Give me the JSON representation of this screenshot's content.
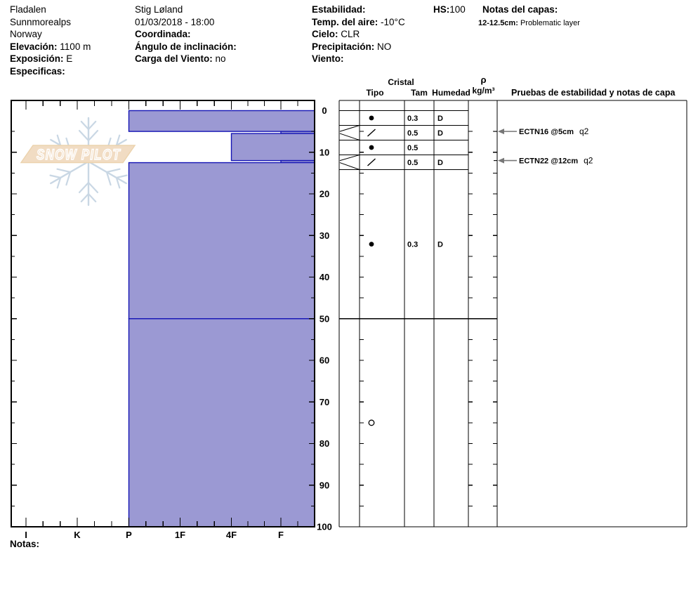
{
  "colors": {
    "layer_fill": "#9b99d3",
    "layer_stroke": "#1515b5",
    "axis": "#000000",
    "snowflake": "#c9d7e4",
    "logo_band_fill": "#f1dcc3",
    "logo_band_stroke": "#ecd3ae",
    "logo_text": "#ffffff",
    "arrow": "#777777"
  },
  "logo": {
    "text": "SNOW PILOT"
  },
  "header": {
    "site": {
      "name": "Fladalen",
      "range": "Sunnmorealps",
      "country": "Norway",
      "elevation_label": "Elevación:",
      "elevation_value": "1100 m",
      "aspect_label": "Exposición:",
      "aspect_value": "E",
      "specifics_label": "Especificas:",
      "specifics_value": ""
    },
    "observer": {
      "name": "Stig Løland",
      "datetime": "01/03/2018 - 18:00",
      "coord_label": "Coordinada:",
      "coord_value": "",
      "slope_angle_label": "Ángulo de inclinación:",
      "slope_angle_value": "",
      "wind_loading_label": "Carga del Viento:",
      "wind_loading_value": "no"
    },
    "conditions": {
      "stability_label": "Estabilidad:",
      "stability_value": "",
      "air_temp_label": "Temp. del aire:",
      "air_temp_value": "-10°C",
      "sky_label": "Cielo:",
      "sky_value": "CLR",
      "precip_label": "Precipitación:",
      "precip_value": "NO",
      "wind_label": "Viento:",
      "wind_value": ""
    },
    "hs_label": "HS:",
    "hs_value": "100",
    "layer_notes_label": "Notas del capas:",
    "layer_notes": [
      {
        "range": "12-12.5cm:",
        "text": "Problematic layer"
      }
    ]
  },
  "table": {
    "headers": {
      "cristal": "Cristal",
      "tipo": "Tipo",
      "tam": "Tam",
      "humedad": "Humedad",
      "rho": "ρ",
      "rho_units": "kg/m³",
      "tests": "Pruebas de estabilidad y notas de capa"
    }
  },
  "chart_data": {
    "type": "snow-profile",
    "title": "",
    "depth_axis": {
      "unit": "cm",
      "min": 0,
      "max": 100,
      "major_tick": 10,
      "minor_tick": 5,
      "tick_labels": [
        "0",
        "10",
        "20",
        "30",
        "40",
        "50",
        "60",
        "70",
        "80",
        "90",
        "100"
      ]
    },
    "hardness_axis": {
      "categories": [
        "I",
        "K",
        "P",
        "1F",
        "4F",
        "F"
      ]
    },
    "total_depth_hs": 100,
    "layers": [
      {
        "top_cm": 0,
        "bottom_cm": 5,
        "hardness": "P",
        "grain_symbol": "filled-circle",
        "grain_size_mm": "0.3",
        "moisture": "D"
      },
      {
        "top_cm": 5,
        "bottom_cm": 5.5,
        "hardness": "F",
        "grain_symbol": "slash",
        "grain_size_mm": "0.5",
        "moisture": "D"
      },
      {
        "top_cm": 5.5,
        "bottom_cm": 12,
        "hardness": "4F",
        "grain_symbol": "filled-circle",
        "grain_size_mm": "0.5",
        "moisture": ""
      },
      {
        "top_cm": 12,
        "bottom_cm": 12.5,
        "hardness": "F",
        "grain_symbol": "slash",
        "grain_size_mm": "0.5",
        "moisture": "D"
      },
      {
        "top_cm": 12.5,
        "bottom_cm": 50,
        "hardness": "P",
        "grain_symbol": "filled-circle",
        "grain_size_mm": "0.3",
        "moisture": "D"
      },
      {
        "top_cm": 50,
        "bottom_cm": 100,
        "hardness": "P",
        "grain_symbol": "open-circle",
        "grain_size_mm": "",
        "moisture": ""
      }
    ],
    "tests": [
      {
        "label": "ECTN16 @5cm",
        "quality": "q2",
        "depth_cm": 5
      },
      {
        "label": "ECTN22 @12cm",
        "quality": "q2",
        "depth_cm": 12
      }
    ]
  },
  "footer": {
    "notes_label": "Notas:"
  }
}
